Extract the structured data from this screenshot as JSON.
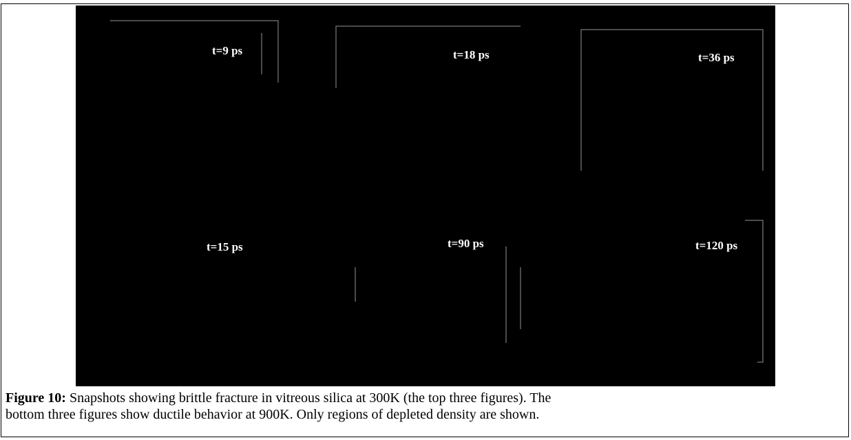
{
  "figure": {
    "panels": [
      {
        "label": "t=9 ps"
      },
      {
        "label": "t=18 ps"
      },
      {
        "label": "t=36 ps"
      },
      {
        "label": "t=15 ps"
      },
      {
        "label": "t=90 ps"
      },
      {
        "label": "t=120 ps"
      }
    ]
  },
  "caption": {
    "label": "Figure 10:",
    "lines": [
      "Snapshots showing brittle fracture in vitreous silica at 300K (the top three figures).  The",
      "bottom three figures show ductile behavior at 900K.  Only regions of depleted density are shown."
    ]
  }
}
